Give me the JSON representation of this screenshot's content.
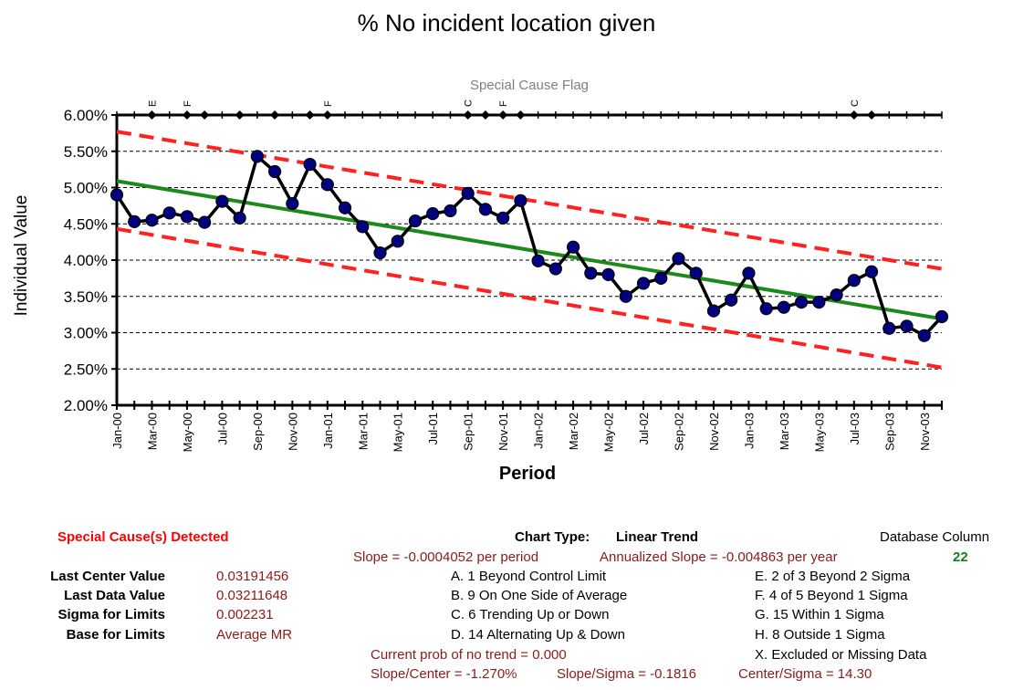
{
  "chart_data": {
    "type": "line",
    "title": "% No incident location given",
    "flag_title": "Special Cause Flag",
    "xlabel": "Period",
    "ylabel": "Individual Value",
    "ylim": [
      0.02,
      0.06
    ],
    "yticks": [
      "2.00%",
      "2.50%",
      "3.00%",
      "3.50%",
      "4.00%",
      "4.50%",
      "5.00%",
      "5.50%",
      "6.00%"
    ],
    "grid": "horizontal dashed",
    "xtick_labels": [
      "Jan-00",
      "Mar-00",
      "May-00",
      "Jul-00",
      "Sep-00",
      "Nov-00",
      "Jan-01",
      "Mar-01",
      "May-01",
      "Jul-01",
      "Sep-01",
      "Nov-01",
      "Jan-02",
      "Mar-02",
      "May-02",
      "Jul-02",
      "Sep-02",
      "Nov-02",
      "Jan-03",
      "Mar-03",
      "May-03",
      "Jul-03",
      "Sep-03",
      "Nov-03"
    ],
    "series": [
      {
        "values": [
          0.049,
          0.0453,
          0.0455,
          0.0465,
          0.046,
          0.0452,
          0.0481,
          0.0458,
          0.0543,
          0.0522,
          0.0478,
          0.0532,
          0.0504,
          0.0472,
          0.0446,
          0.041,
          0.0426,
          0.0454,
          0.0464,
          0.0468,
          0.0492,
          0.047,
          0.0458,
          0.0482,
          0.0399,
          0.0388,
          0.0418,
          0.0382,
          0.038,
          0.035,
          0.0368,
          0.0375,
          0.0402,
          0.0382,
          0.033,
          0.0345,
          0.0382,
          0.0333,
          0.0335,
          0.0342,
          0.0342,
          0.0352,
          0.0372,
          0.0384,
          0.0306,
          0.0309,
          0.0296,
          0.0322
        ]
      },
      {
        "values": [
          0.0509,
          0.03191456
        ]
      },
      {
        "values": [
          0.0577,
          0.0388
        ]
      },
      {
        "values": [
          0.0443,
          0.0252
        ]
      }
    ],
    "flags": [
      {
        "index": 2,
        "label": "E"
      },
      {
        "index": 4,
        "label": "F"
      },
      {
        "index": 5,
        "label": ""
      },
      {
        "index": 7,
        "label": ""
      },
      {
        "index": 9,
        "label": ""
      },
      {
        "index": 11,
        "label": ""
      },
      {
        "index": 12,
        "label": "F"
      },
      {
        "index": 20,
        "label": "C"
      },
      {
        "index": 21,
        "label": ""
      },
      {
        "index": 22,
        "label": "F"
      },
      {
        "index": 23,
        "label": ""
      },
      {
        "index": 42,
        "label": "C"
      },
      {
        "index": 43,
        "label": ""
      }
    ]
  },
  "colors": {
    "data_line": "#000000",
    "marker": "#000080",
    "center_line": "#1a8a1a",
    "limits": "#ff2020",
    "flag_text": "#808080"
  },
  "summary": {
    "special_cause": "Special Cause(s) Detected",
    "chart_type_label": "Chart Type:",
    "chart_type_value": "Linear Trend",
    "db_column_label": "Database Column",
    "db_column_value": "22",
    "slope": "Slope = -0.0004052 per period",
    "annualized_slope": "Annualized Slope = -0.004863 per year",
    "last_center_label": "Last Center Value",
    "last_center_value": "0.03191456",
    "last_data_label": "Last Data Value",
    "last_data_value": "0.03211648",
    "sigma_label": "Sigma for Limits",
    "sigma_value": "0.002231",
    "base_label": "Base for Limits",
    "base_value": "Average MR",
    "rule_a": "A. 1 Beyond Control Limit",
    "rule_b": "B. 9 On One Side of Average",
    "rule_c": "C. 6 Trending Up or Down",
    "rule_d": "D. 14 Alternating  Up & Down",
    "rule_e": "E.  2 of 3 Beyond 2 Sigma",
    "rule_f": "F.  4 of 5 Beyond 1 Sigma",
    "rule_g": "G.  15 Within 1 Sigma",
    "rule_h": "H.  8 Outside 1 Sigma",
    "rule_x": "X.  Excluded or Missing Data",
    "prob_no_trend": "Current prob of no trend = 0.000",
    "slope_center": "Slope/Center = -1.270%",
    "slope_sigma": "Slope/Sigma = -0.1816",
    "center_sigma": "Center/Sigma = 14.30"
  }
}
